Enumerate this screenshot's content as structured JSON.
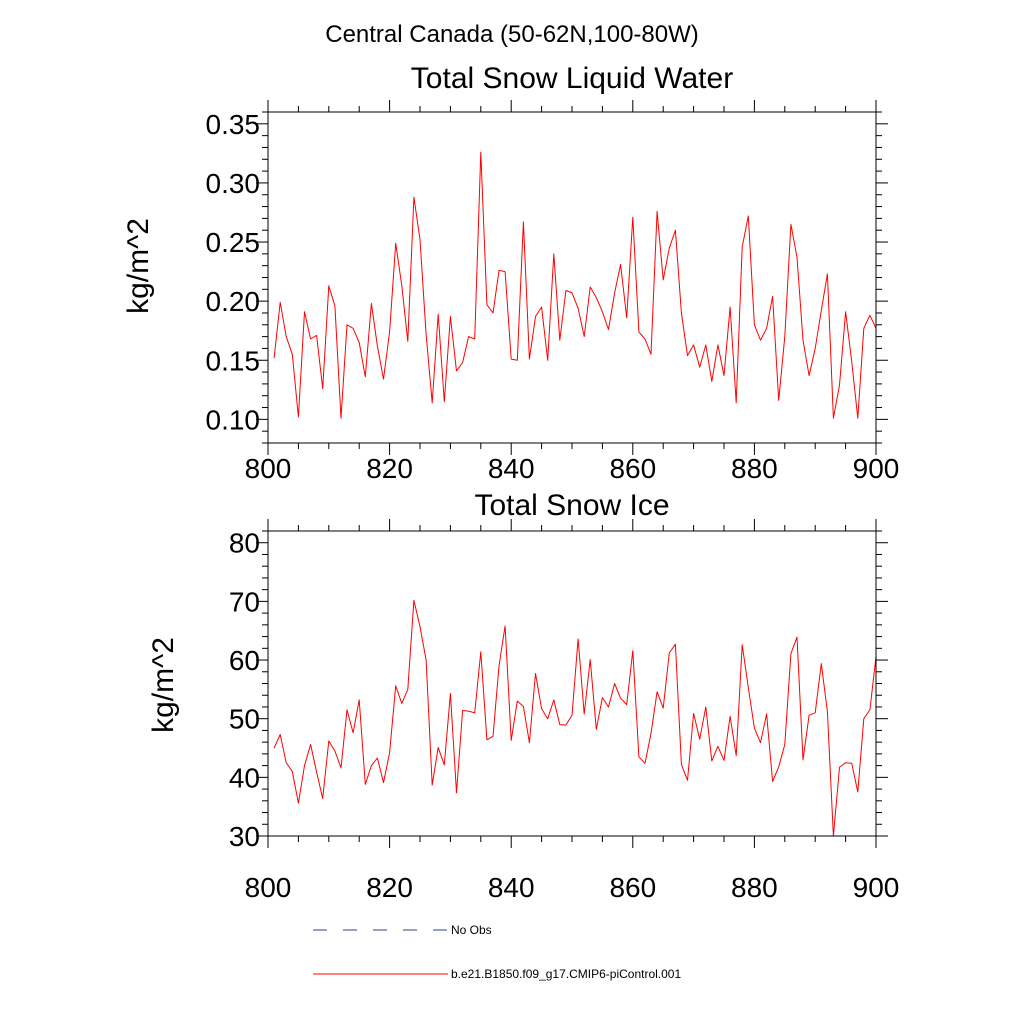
{
  "figure": {
    "suptitle": "Central Canada (50-62N,100-80W)",
    "series_color": "#ff0000",
    "obs_color": "#2b3f8f"
  },
  "legend": {
    "placement": "bottom-center",
    "entries": [
      {
        "label": "No Obs",
        "style": "dashed",
        "color": "#2b3f8f"
      },
      {
        "label": "b.e21.B1850.f09_g17.CMIP6-piControl.001",
        "style": "solid",
        "color": "#ff0000"
      }
    ]
  },
  "chart_data": [
    {
      "type": "line",
      "title": "Total Snow Liquid Water",
      "xlabel": "",
      "ylabel": "kg/m^2",
      "xlim": [
        800,
        900
      ],
      "ylim": [
        0.08,
        0.36
      ],
      "xticks": [
        "800",
        "820",
        "840",
        "860",
        "880",
        "900"
      ],
      "yticks": [
        "0.10",
        "0.15",
        "0.20",
        "0.25",
        "0.30",
        "0.35"
      ],
      "grid": false,
      "x_start": 801,
      "series": [
        {
          "values": [
            0.152,
            0.199,
            0.17,
            0.155,
            0.102,
            0.191,
            0.168,
            0.171,
            0.126,
            0.213,
            0.196,
            0.101,
            0.18,
            0.177,
            0.165,
            0.136,
            0.198,
            0.162,
            0.134,
            0.174,
            0.249,
            0.213,
            0.166,
            0.288,
            0.252,
            0.172,
            0.114,
            0.189,
            0.115,
            0.187,
            0.141,
            0.148,
            0.17,
            0.168,
            0.326,
            0.197,
            0.19,
            0.226,
            0.225,
            0.151,
            0.15,
            0.267,
            0.151,
            0.187,
            0.195,
            0.15,
            0.24,
            0.167,
            0.209,
            0.207,
            0.194,
            0.17,
            0.212,
            0.203,
            0.191,
            0.176,
            0.207,
            0.231,
            0.186,
            0.271,
            0.174,
            0.168,
            0.155,
            0.276,
            0.218,
            0.245,
            0.26,
            0.19,
            0.154,
            0.163,
            0.144,
            0.163,
            0.132,
            0.163,
            0.137,
            0.195,
            0.114,
            0.246,
            0.272,
            0.18,
            0.167,
            0.177,
            0.204,
            0.116,
            0.17,
            0.265,
            0.237,
            0.167,
            0.137,
            0.16,
            0.192,
            0.223,
            0.101,
            0.129,
            0.191,
            0.149,
            0.101,
            0.177,
            0.188,
            0.177
          ]
        }
      ]
    },
    {
      "type": "line",
      "title": "Total Snow Ice",
      "xlabel": "",
      "ylabel": "kg/m^2",
      "xlim": [
        800,
        900
      ],
      "ylim": [
        30,
        82
      ],
      "xticks": [
        "800",
        "820",
        "840",
        "860",
        "880",
        "900"
      ],
      "yticks": [
        "30",
        "40",
        "50",
        "60",
        "70",
        "80"
      ],
      "grid": false,
      "x_start": 801,
      "series": [
        {
          "values": [
            45.0,
            47.3,
            42.5,
            41.0,
            35.6,
            42.0,
            45.6,
            40.9,
            36.4,
            46.2,
            44.5,
            41.6,
            51.5,
            47.6,
            53.2,
            38.8,
            42.0,
            43.3,
            39.1,
            44.2,
            55.6,
            52.6,
            55.0,
            70.2,
            65.7,
            60.0,
            38.7,
            45.1,
            42.1,
            54.3,
            37.4,
            51.4,
            51.3,
            51.0,
            61.4,
            46.4,
            47.0,
            59.0,
            65.8,
            46.3,
            53.0,
            52.1,
            45.9,
            57.7,
            51.7,
            50.0,
            53.2,
            49.0,
            48.9,
            50.6,
            63.6,
            50.8,
            60.1,
            48.2,
            53.6,
            52.0,
            56.0,
            53.5,
            52.4,
            61.6,
            43.5,
            42.4,
            47.5,
            54.6,
            51.8,
            61.2,
            62.7,
            42.2,
            39.5,
            50.9,
            46.5,
            52.0,
            42.8,
            45.3,
            42.9,
            50.4,
            43.7,
            62.6,
            55.3,
            48.4,
            45.9,
            50.8,
            39.3,
            41.8,
            45.6,
            61.1,
            63.9,
            43.0,
            50.6,
            51.0,
            59.4,
            51.2,
            30.0,
            41.7,
            42.5,
            42.4,
            37.5,
            50.0,
            51.5,
            60.6
          ]
        }
      ]
    }
  ]
}
